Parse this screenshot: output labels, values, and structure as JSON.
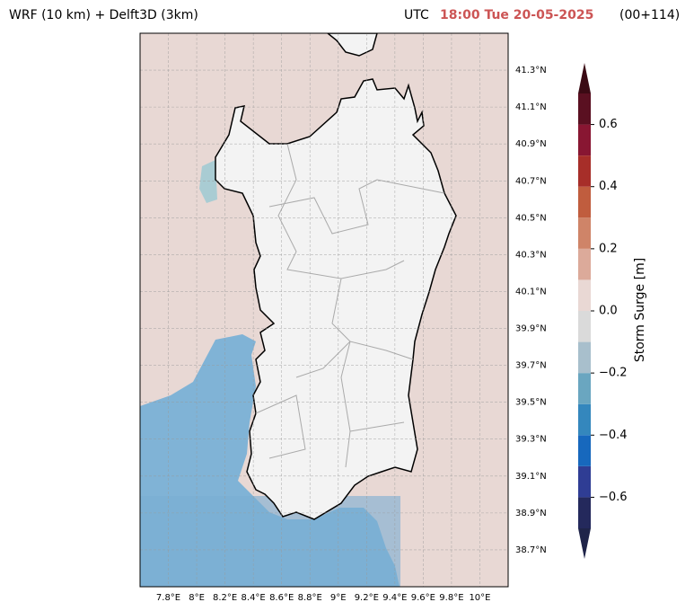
{
  "header": {
    "left": "WRF (10 km) + Delft3D (3km)",
    "utc": "UTC",
    "time": "18:00 Tue 20-05-2025",
    "lead": "(00+114)"
  },
  "map": {
    "xlim": [
      7.6,
      10.2
    ],
    "ylim": [
      38.5,
      41.5
    ],
    "xticks": [
      {
        "value": 7.8,
        "label": "7.8°E"
      },
      {
        "value": 8.0,
        "label": "8°E"
      },
      {
        "value": 8.2,
        "label": "8.2°E"
      },
      {
        "value": 8.4,
        "label": "8.4°E"
      },
      {
        "value": 8.6,
        "label": "8.6°E"
      },
      {
        "value": 8.8,
        "label": "8.8°E"
      },
      {
        "value": 9.0,
        "label": "9°E"
      },
      {
        "value": 9.2,
        "label": "9.2°E"
      },
      {
        "value": 9.4,
        "label": "9.4°E"
      },
      {
        "value": 9.6,
        "label": "9.6°E"
      },
      {
        "value": 9.8,
        "label": "9.8°E"
      },
      {
        "value": 10.0,
        "label": "10°E"
      }
    ],
    "yticks": [
      {
        "value": 38.7,
        "label": "38.7°N"
      },
      {
        "value": 38.9,
        "label": "38.9°N"
      },
      {
        "value": 39.1,
        "label": "39.1°N"
      },
      {
        "value": 39.3,
        "label": "39.3°N"
      },
      {
        "value": 39.5,
        "label": "39.5°N"
      },
      {
        "value": 39.7,
        "label": "39.7°N"
      },
      {
        "value": 39.9,
        "label": "39.9°N"
      },
      {
        "value": 40.1,
        "label": "40.1°N"
      },
      {
        "value": 40.3,
        "label": "40.3°N"
      },
      {
        "value": 40.5,
        "label": "40.5°N"
      },
      {
        "value": 40.7,
        "label": "40.7°N"
      },
      {
        "value": 40.9,
        "label": "40.9°N"
      },
      {
        "value": 41.1,
        "label": "41.1°N"
      },
      {
        "value": 41.3,
        "label": "41.3°N"
      }
    ],
    "grid": true
  },
  "colorbar": {
    "label": "Storm Surge [m]",
    "levels": [
      -0.7,
      -0.6,
      -0.5,
      -0.4,
      -0.3,
      -0.2,
      -0.1,
      0,
      0.1,
      0.2,
      0.3,
      0.4,
      0.5,
      0.6,
      0.7
    ],
    "colors": [
      "#24295c",
      "#2f3d94",
      "#1768bd",
      "#3487bd",
      "#6aa6c0",
      "#a8bfcc",
      "#dadada",
      "#e9d8d4",
      "#dcaa9a",
      "#cf8468",
      "#c05d3e",
      "#a72e29",
      "#881632",
      "#5a1021"
    ],
    "under_color": "#1f2449",
    "over_color": "#3b0a14",
    "ticks": [
      {
        "value": -0.6,
        "label": "−0.6"
      },
      {
        "value": -0.4,
        "label": "−0.4"
      },
      {
        "value": -0.2,
        "label": "−0.2"
      },
      {
        "value": 0,
        "label": "0.0"
      },
      0.2,
      0.4,
      0.6
    ]
  }
}
